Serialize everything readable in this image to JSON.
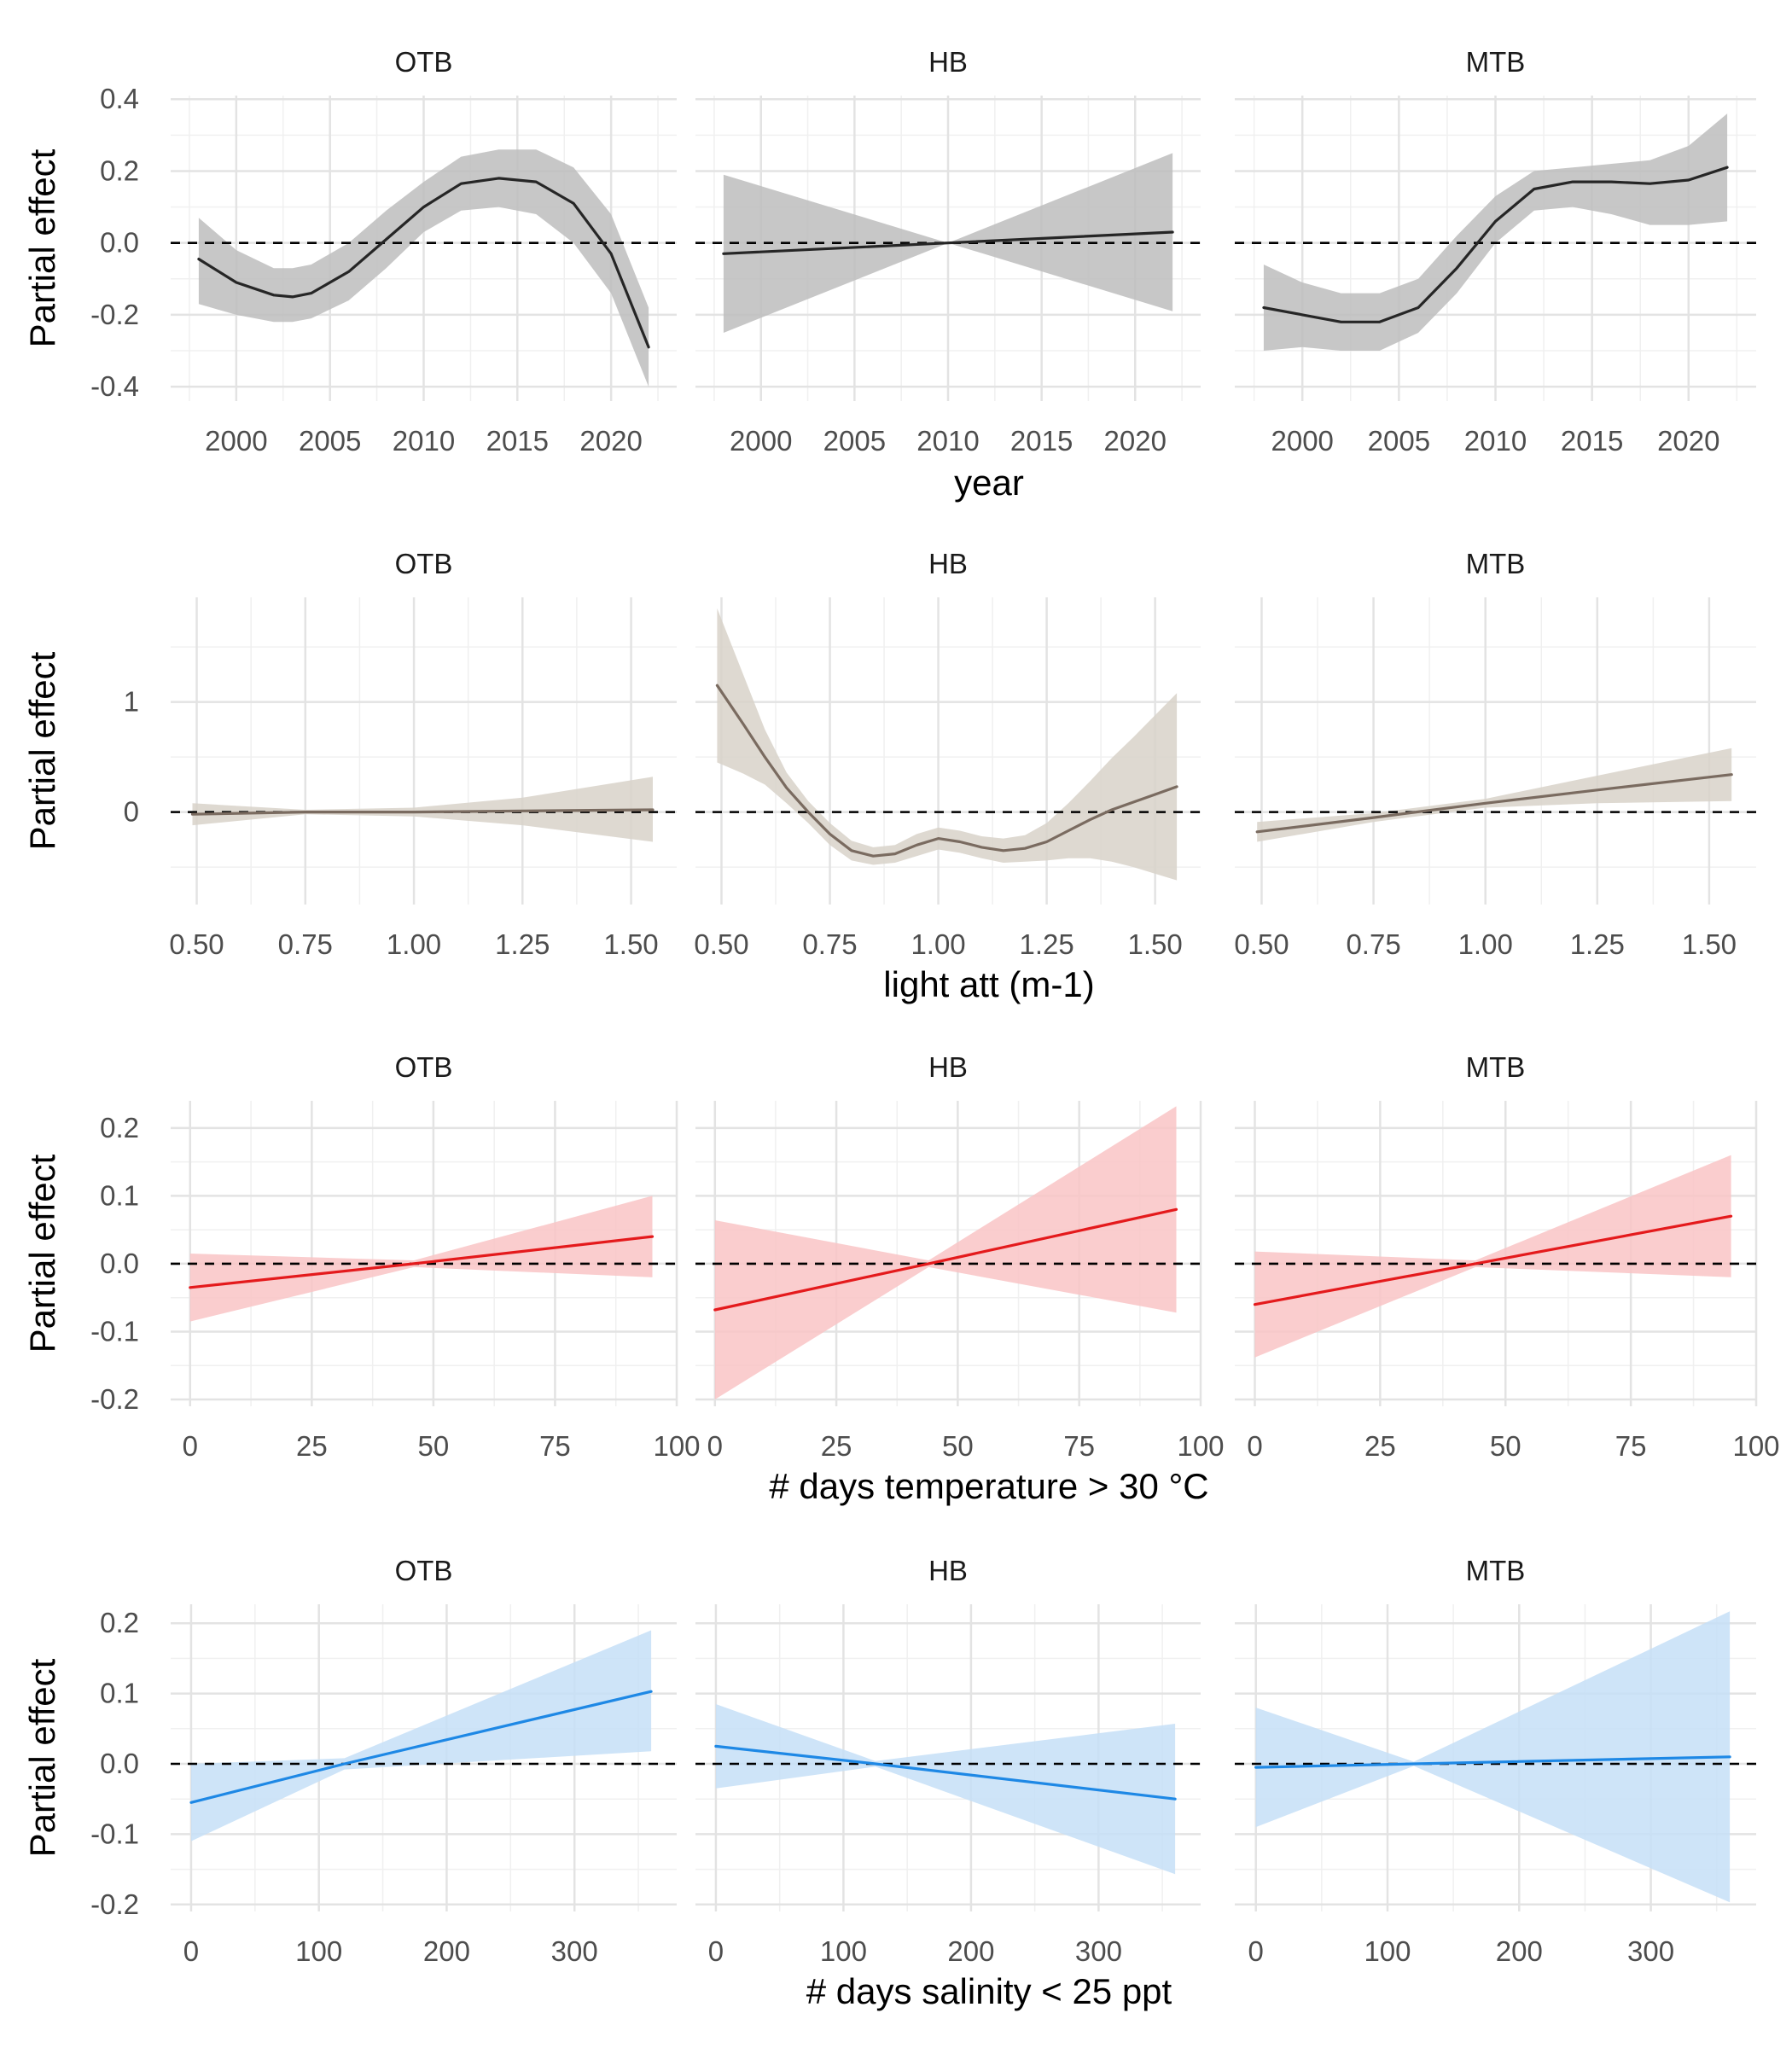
{
  "chart_data": [
    {
      "type": "line",
      "ylabel": "Partial effect",
      "xlabel": "year",
      "facets": [
        "OTB",
        "HB",
        "MTB"
      ],
      "color": "#262626",
      "band_color": "#bdbdbd",
      "xlim": [
        1996.5,
        2023.5
      ],
      "ylim": [
        -0.44,
        0.41
      ],
      "x_ticks": [
        2000,
        2005,
        2010,
        2015,
        2020
      ],
      "x_tick_labels": [
        "2000",
        "2005",
        "2010",
        "2015",
        "2020"
      ],
      "y_ticks": [
        -0.4,
        -0.2,
        0.0,
        0.2,
        0.4
      ],
      "y_tick_labels": [
        "-0.4",
        "-0.2",
        "0.0",
        "0.2",
        "0.4"
      ],
      "reference_line": 0,
      "series": [
        {
          "facet": "OTB",
          "x": [
            1998,
            2000,
            2002,
            2003,
            2004,
            2006,
            2008,
            2010,
            2012,
            2014,
            2016,
            2018,
            2020,
            2022
          ],
          "y": [
            -0.045,
            -0.11,
            -0.145,
            -0.15,
            -0.14,
            -0.08,
            0.01,
            0.1,
            0.165,
            0.18,
            0.17,
            0.11,
            -0.03,
            -0.29
          ],
          "lower": [
            -0.17,
            -0.2,
            -0.22,
            -0.22,
            -0.21,
            -0.16,
            -0.07,
            0.03,
            0.09,
            0.1,
            0.08,
            0.0,
            -0.14,
            -0.4
          ],
          "upper": [
            0.07,
            -0.02,
            -0.07,
            -0.07,
            -0.06,
            0.0,
            0.09,
            0.17,
            0.24,
            0.26,
            0.26,
            0.21,
            0.08,
            -0.18
          ]
        },
        {
          "facet": "HB",
          "x": [
            1998,
            2010,
            2022
          ],
          "y": [
            -0.03,
            0.0,
            0.03
          ],
          "lower": [
            -0.25,
            0.0,
            -0.19
          ],
          "upper": [
            0.19,
            0.0,
            0.25
          ]
        },
        {
          "facet": "MTB",
          "x": [
            1998,
            2000,
            2002,
            2004,
            2006,
            2008,
            2010,
            2012,
            2014,
            2016,
            2018,
            2020,
            2022
          ],
          "y": [
            -0.18,
            -0.2,
            -0.22,
            -0.22,
            -0.18,
            -0.07,
            0.06,
            0.15,
            0.17,
            0.17,
            0.165,
            0.175,
            0.21
          ],
          "lower": [
            -0.3,
            -0.29,
            -0.3,
            -0.3,
            -0.25,
            -0.14,
            0.0,
            0.09,
            0.1,
            0.08,
            0.05,
            0.05,
            0.06
          ],
          "upper": [
            -0.06,
            -0.11,
            -0.14,
            -0.14,
            -0.1,
            0.02,
            0.13,
            0.2,
            0.21,
            0.22,
            0.23,
            0.27,
            0.36
          ]
        }
      ]
    },
    {
      "type": "line",
      "ylabel": "Partial effect",
      "xlabel": "light att (m-1)",
      "facets": [
        "OTB",
        "HB",
        "MTB"
      ],
      "color": "#7a6b60",
      "band_color": "#d8d2c9",
      "xlim": [
        0.44,
        1.605
      ],
      "ylim": [
        -0.84,
        1.95
      ],
      "x_ticks": [
        0.5,
        0.75,
        1.0,
        1.25,
        1.5
      ],
      "x_tick_labels": [
        "0.50",
        "0.75",
        "1.00",
        "1.25",
        "1.50"
      ],
      "y_ticks": [
        0,
        1
      ],
      "y_tick_labels": [
        "0",
        "1"
      ],
      "reference_line": 0,
      "series": [
        {
          "facet": "OTB",
          "x": [
            0.49,
            0.75,
            1.0,
            1.25,
            1.55
          ],
          "y": [
            -0.02,
            0.0,
            0.0,
            0.01,
            0.02
          ],
          "lower": [
            -0.12,
            -0.02,
            -0.04,
            -0.12,
            -0.27
          ],
          "upper": [
            0.08,
            0.02,
            0.04,
            0.13,
            0.32
          ]
        },
        {
          "facet": "HB",
          "x": [
            0.49,
            0.55,
            0.6,
            0.65,
            0.7,
            0.75,
            0.8,
            0.85,
            0.9,
            0.95,
            1.0,
            1.05,
            1.1,
            1.15,
            1.2,
            1.25,
            1.3,
            1.35,
            1.4,
            1.45,
            1.5,
            1.55
          ],
          "y": [
            1.15,
            0.8,
            0.5,
            0.22,
            0.0,
            -0.2,
            -0.35,
            -0.4,
            -0.38,
            -0.3,
            -0.24,
            -0.27,
            -0.32,
            -0.35,
            -0.33,
            -0.27,
            -0.17,
            -0.07,
            0.02,
            0.09,
            0.16,
            0.23
          ],
          "lower": [
            0.45,
            0.35,
            0.25,
            0.08,
            -0.1,
            -0.3,
            -0.44,
            -0.48,
            -0.46,
            -0.4,
            -0.34,
            -0.37,
            -0.42,
            -0.46,
            -0.45,
            -0.44,
            -0.42,
            -0.42,
            -0.45,
            -0.5,
            -0.56,
            -0.62
          ],
          "upper": [
            1.85,
            1.25,
            0.75,
            0.36,
            0.1,
            -0.1,
            -0.26,
            -0.32,
            -0.3,
            -0.2,
            -0.14,
            -0.17,
            -0.22,
            -0.24,
            -0.21,
            -0.1,
            0.08,
            0.28,
            0.49,
            0.68,
            0.88,
            1.08
          ]
        },
        {
          "facet": "MTB",
          "x": [
            0.49,
            0.75,
            1.0,
            1.25,
            1.55
          ],
          "y": [
            -0.18,
            -0.05,
            0.08,
            0.2,
            0.34
          ],
          "lower": [
            -0.27,
            -0.09,
            0.04,
            0.08,
            0.1
          ],
          "upper": [
            -0.09,
            -0.01,
            0.12,
            0.33,
            0.58
          ]
        }
      ]
    },
    {
      "type": "line",
      "ylabel": "Partial effect",
      "xlabel": "# days temperature > 30 °C",
      "facets": [
        "OTB",
        "HB",
        "MTB"
      ],
      "color": "#e41a1c",
      "band_color": "#f9c4c5",
      "xlim": [
        -4,
        100
      ],
      "ylim": [
        -0.21,
        0.24
      ],
      "x_ticks": [
        0,
        25,
        50,
        75,
        100
      ],
      "x_tick_labels": [
        "0",
        "25",
        "50",
        "75",
        "100"
      ],
      "y_ticks": [
        -0.2,
        -0.1,
        0.0,
        0.1,
        0.2
      ],
      "y_tick_labels": [
        "-0.2",
        "-0.1",
        "0.0",
        "0.1",
        "0.2"
      ],
      "reference_line": 0,
      "series": [
        {
          "facet": "OTB",
          "x": [
            0,
            46,
            95
          ],
          "y": [
            -0.035,
            0.0,
            0.04
          ],
          "lower": [
            -0.085,
            -0.005,
            -0.02
          ],
          "upper": [
            0.015,
            0.005,
            0.1
          ]
        },
        {
          "facet": "HB",
          "x": [
            0,
            44,
            95
          ],
          "y": [
            -0.068,
            0.0,
            0.08
          ],
          "lower": [
            -0.2,
            -0.005,
            -0.072
          ],
          "upper": [
            0.064,
            0.005,
            0.232
          ]
        },
        {
          "facet": "MTB",
          "x": [
            0,
            44,
            95
          ],
          "y": [
            -0.06,
            0.0,
            0.07
          ],
          "lower": [
            -0.138,
            -0.005,
            -0.02
          ],
          "upper": [
            0.018,
            0.005,
            0.16
          ]
        }
      ]
    },
    {
      "type": "line",
      "ylabel": "Partial effect",
      "xlabel": "# days salinity < 25 ppt",
      "facets": [
        "OTB",
        "HB",
        "MTB"
      ],
      "color": "#1e88e5",
      "band_color": "#c6dff7",
      "xlim": [
        -16,
        380
      ],
      "ylim": [
        -0.21,
        0.227
      ],
      "x_ticks": [
        0,
        100,
        200,
        300
      ],
      "x_tick_labels": [
        "0",
        "100",
        "200",
        "300"
      ],
      "y_ticks": [
        -0.2,
        -0.1,
        0.0,
        0.1,
        0.2
      ],
      "y_tick_labels": [
        "-0.2",
        "-0.1",
        "0.0",
        "0.1",
        "0.2"
      ],
      "reference_line": 0,
      "series": [
        {
          "facet": "OTB",
          "x": [
            0,
            120,
            360
          ],
          "y": [
            -0.055,
            0.0,
            0.103
          ],
          "lower": [
            -0.11,
            -0.008,
            0.018
          ],
          "upper": [
            0.0,
            0.008,
            0.19
          ]
        },
        {
          "facet": "HB",
          "x": [
            0,
            125,
            360
          ],
          "y": [
            0.025,
            0.0,
            -0.05
          ],
          "lower": [
            -0.035,
            -0.004,
            -0.157
          ],
          "upper": [
            0.085,
            0.004,
            0.057
          ]
        },
        {
          "facet": "MTB",
          "x": [
            0,
            120,
            360
          ],
          "y": [
            -0.005,
            0.0,
            0.01
          ],
          "lower": [
            -0.09,
            -0.003,
            -0.197
          ],
          "upper": [
            0.08,
            0.003,
            0.217
          ]
        }
      ]
    }
  ]
}
